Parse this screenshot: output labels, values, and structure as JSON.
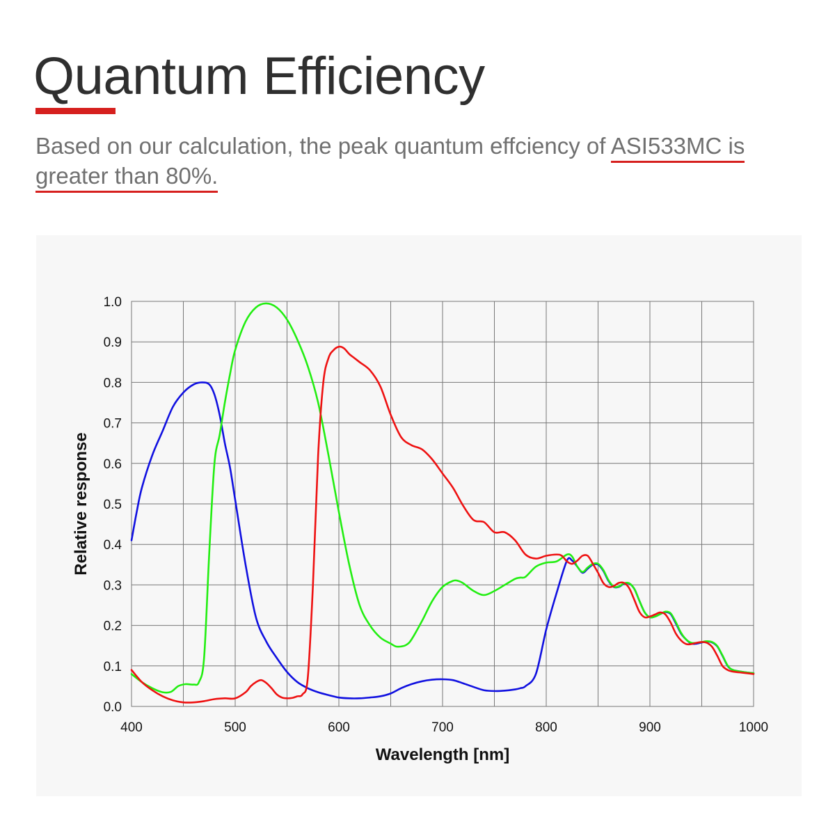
{
  "header": {
    "title": "Quantum Efficiency",
    "subtitle_pre": "Based on our calculation, the peak quantum effciency of ",
    "subtitle_hl1": "ASI533MC is",
    "subtitle_mid": " ",
    "subtitle_hl2": "greater than 80%.",
    "accent_color": "#d6201e"
  },
  "chart_data": {
    "type": "line",
    "title": "",
    "xlabel": "Wavelength [nm]",
    "ylabel": "Relative response",
    "xlim": [
      400,
      1000
    ],
    "ylim": [
      0,
      1.0
    ],
    "x_ticks": [
      "400",
      "500",
      "600",
      "700",
      "800",
      "900",
      "1000"
    ],
    "y_ticks": [
      "0.0",
      "0.1",
      "0.2",
      "0.3",
      "0.4",
      "0.5",
      "0.6",
      "0.7",
      "0.8",
      "0.9",
      "1.0"
    ],
    "x_tick_values": [
      400,
      500,
      600,
      700,
      800,
      900,
      1000
    ],
    "y_tick_values": [
      0,
      0.1,
      0.2,
      0.3,
      0.4,
      0.5,
      0.6,
      0.7,
      0.8,
      0.9,
      1.0
    ],
    "x_minor_grid": [
      450,
      550,
      650,
      750,
      850,
      950
    ],
    "grid": true,
    "series": [
      {
        "name": "Blue",
        "color": "#1010e0",
        "x": [
          400,
          405,
          410,
          420,
          430,
          440,
          450,
          460,
          468,
          475,
          480,
          485,
          490,
          495,
          500,
          510,
          520,
          530,
          540,
          550,
          560,
          570,
          580,
          590,
          600,
          610,
          620,
          630,
          640,
          650,
          660,
          670,
          680,
          690,
          700,
          710,
          720,
          730,
          740,
          750,
          760,
          770,
          775,
          780,
          790,
          800,
          810,
          820,
          825,
          830,
          835,
          840,
          845,
          850,
          855,
          860,
          865,
          870,
          875,
          880,
          885,
          890,
          895,
          900,
          905,
          910,
          915,
          920,
          925,
          930,
          935,
          940,
          945,
          950,
          955,
          960,
          965,
          970,
          975,
          980,
          990,
          1000
        ],
        "y": [
          0.41,
          0.48,
          0.54,
          0.62,
          0.68,
          0.74,
          0.775,
          0.795,
          0.8,
          0.795,
          0.77,
          0.72,
          0.65,
          0.59,
          0.51,
          0.35,
          0.22,
          0.16,
          0.12,
          0.085,
          0.06,
          0.045,
          0.035,
          0.028,
          0.022,
          0.02,
          0.02,
          0.022,
          0.025,
          0.032,
          0.045,
          0.055,
          0.062,
          0.066,
          0.067,
          0.065,
          0.057,
          0.048,
          0.04,
          0.038,
          0.039,
          0.042,
          0.045,
          0.05,
          0.08,
          0.19,
          0.28,
          0.36,
          0.36,
          0.345,
          0.33,
          0.34,
          0.35,
          0.35,
          0.335,
          0.31,
          0.295,
          0.295,
          0.303,
          0.303,
          0.29,
          0.26,
          0.232,
          0.22,
          0.222,
          0.228,
          0.233,
          0.228,
          0.205,
          0.18,
          0.165,
          0.155,
          0.155,
          0.158,
          0.16,
          0.158,
          0.148,
          0.125,
          0.1,
          0.09,
          0.085,
          0.082
        ]
      },
      {
        "name": "Green",
        "color": "#22ee11",
        "x": [
          400,
          410,
          420,
          430,
          438,
          445,
          452,
          460,
          465,
          470,
          475,
          480,
          485,
          490,
          495,
          500,
          510,
          520,
          530,
          540,
          550,
          560,
          570,
          580,
          590,
          600,
          610,
          620,
          630,
          640,
          650,
          655,
          660,
          665,
          670,
          680,
          690,
          700,
          710,
          715,
          720,
          730,
          740,
          750,
          760,
          770,
          775,
          780,
          790,
          800,
          810,
          820,
          825,
          830,
          835,
          840,
          845,
          850,
          855,
          860,
          865,
          870,
          875,
          880,
          885,
          890,
          895,
          900,
          905,
          910,
          915,
          920,
          925,
          930,
          935,
          940,
          945,
          950,
          955,
          960,
          965,
          970,
          975,
          980,
          990,
          1000
        ],
        "y": [
          0.08,
          0.06,
          0.045,
          0.035,
          0.036,
          0.05,
          0.055,
          0.054,
          0.06,
          0.12,
          0.38,
          0.6,
          0.67,
          0.75,
          0.82,
          0.88,
          0.95,
          0.985,
          0.995,
          0.985,
          0.955,
          0.905,
          0.84,
          0.75,
          0.62,
          0.48,
          0.35,
          0.25,
          0.2,
          0.17,
          0.155,
          0.148,
          0.148,
          0.152,
          0.165,
          0.21,
          0.26,
          0.295,
          0.31,
          0.31,
          0.304,
          0.285,
          0.275,
          0.285,
          0.3,
          0.315,
          0.318,
          0.32,
          0.345,
          0.355,
          0.358,
          0.375,
          0.37,
          0.345,
          0.332,
          0.343,
          0.352,
          0.352,
          0.337,
          0.312,
          0.296,
          0.296,
          0.304,
          0.304,
          0.29,
          0.26,
          0.232,
          0.22,
          0.222,
          0.228,
          0.234,
          0.23,
          0.208,
          0.182,
          0.165,
          0.157,
          0.157,
          0.159,
          0.161,
          0.159,
          0.149,
          0.126,
          0.101,
          0.09,
          0.085,
          0.082
        ]
      },
      {
        "name": "Red",
        "color": "#ee1111",
        "x": [
          400,
          410,
          420,
          430,
          440,
          450,
          460,
          470,
          480,
          490,
          500,
          510,
          515,
          520,
          525,
          530,
          535,
          540,
          545,
          550,
          555,
          560,
          565,
          570,
          575,
          580,
          585,
          590,
          595,
          600,
          605,
          610,
          615,
          620,
          630,
          640,
          650,
          660,
          670,
          680,
          690,
          700,
          710,
          720,
          730,
          740,
          750,
          760,
          770,
          780,
          790,
          800,
          810,
          815,
          820,
          825,
          830,
          835,
          840,
          845,
          850,
          855,
          860,
          865,
          870,
          875,
          880,
          885,
          890,
          895,
          900,
          905,
          910,
          915,
          920,
          925,
          930,
          935,
          940,
          945,
          950,
          955,
          960,
          965,
          970,
          975,
          980,
          990,
          1000
        ],
        "y": [
          0.09,
          0.06,
          0.04,
          0.025,
          0.015,
          0.01,
          0.01,
          0.013,
          0.018,
          0.02,
          0.02,
          0.035,
          0.05,
          0.06,
          0.065,
          0.058,
          0.045,
          0.03,
          0.022,
          0.02,
          0.021,
          0.025,
          0.03,
          0.07,
          0.3,
          0.62,
          0.8,
          0.86,
          0.88,
          0.888,
          0.884,
          0.87,
          0.86,
          0.85,
          0.83,
          0.79,
          0.72,
          0.665,
          0.645,
          0.635,
          0.61,
          0.575,
          0.54,
          0.495,
          0.46,
          0.455,
          0.43,
          0.43,
          0.41,
          0.375,
          0.365,
          0.372,
          0.375,
          0.372,
          0.358,
          0.352,
          0.36,
          0.372,
          0.372,
          0.352,
          0.33,
          0.305,
          0.295,
          0.297,
          0.305,
          0.305,
          0.292,
          0.263,
          0.233,
          0.22,
          0.222,
          0.227,
          0.232,
          0.227,
          0.207,
          0.18,
          0.163,
          0.154,
          0.154,
          0.157,
          0.159,
          0.157,
          0.147,
          0.125,
          0.1,
          0.09,
          0.086,
          0.083,
          0.08
        ]
      }
    ]
  }
}
